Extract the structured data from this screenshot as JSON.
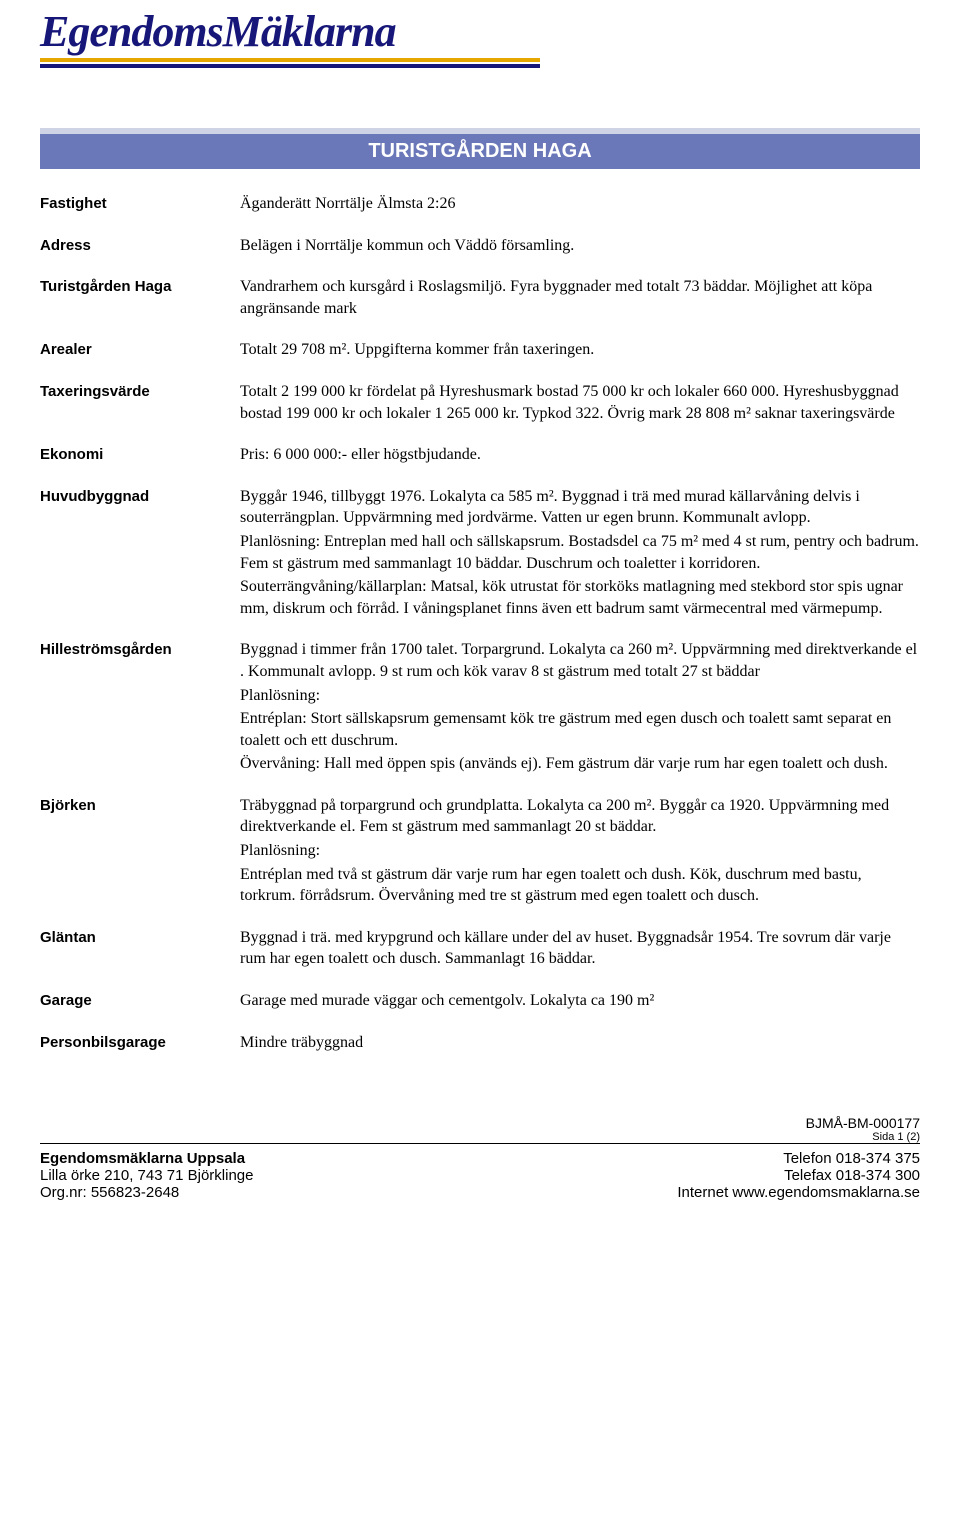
{
  "logo": {
    "text": "EgendomsMäklarna",
    "text_color": "#17177a",
    "underline_colors": [
      "#e6a800",
      "#17177a"
    ]
  },
  "title_bar": {
    "text": "TURISTGÅRDEN HAGA",
    "background_color": "#6a77b8",
    "top_border_color": "#cfd3e6",
    "text_color": "#ffffff"
  },
  "sections": [
    {
      "label": "Fastighet",
      "paragraphs": [
        "Äganderätt Norrtälje Älmsta 2:26"
      ]
    },
    {
      "label": "Adress",
      "paragraphs": [
        "Belägen i Norrtälje kommun och Väddö församling."
      ]
    },
    {
      "label": "Turistgården Haga",
      "paragraphs": [
        "Vandrarhem och kursgård i Roslagsmiljö. Fyra byggnader med totalt 73 bäddar. Möjlighet att köpa angränsande mark"
      ]
    },
    {
      "label": "Arealer",
      "paragraphs": [
        "Totalt 29 708 m². Uppgifterna kommer från taxeringen."
      ]
    },
    {
      "label": "Taxeringsvärde",
      "paragraphs": [
        "Totalt 2 199 000 kr fördelat på Hyreshusmark bostad 75 000 kr och lokaler 660 000. Hyreshusbyggnad bostad 199 000 kr och lokaler 1 265 000 kr. Typkod 322. Övrig mark 28 808 m² saknar taxeringsvärde"
      ]
    },
    {
      "label": "Ekonomi",
      "paragraphs": [
        "Pris: 6 000 000:- eller högstbjudande."
      ]
    },
    {
      "label": "Huvudbyggnad",
      "paragraphs": [
        "Byggår 1946, tillbyggt 1976. Lokalyta ca 585 m². Byggnad i trä med murad källarvåning delvis i souterrängplan. Uppvärmning med jordvärme. Vatten ur egen brunn. Kommunalt avlopp.",
        "Planlösning: Entreplan med hall och sällskapsrum. Bostadsdel ca 75 m² med 4 st rum, pentry och badrum. Fem st gästrum med sammanlagt 10 bäddar. Duschrum och toaletter i korridoren.",
        "Souterrängvåning/källarplan: Matsal, kök utrustat för storköks matlagning med stekbord stor spis ugnar mm, diskrum och förråd. I våningsplanet finns även ett badrum samt värmecentral med värmepump."
      ]
    },
    {
      "label": "Hilleströmsgården",
      "paragraphs": [
        "Byggnad i timmer från 1700 talet. Torpargrund. Lokalyta ca 260 m². Uppvärmning med direktverkande el . Kommunalt avlopp. 9 st rum och kök varav 8 st gästrum med totalt 27 st bäddar",
        "Planlösning:",
        "Entréplan: Stort sällskapsrum gemensamt kök tre gästrum med egen dusch och toalett samt separat en toalett och ett duschrum.",
        "Övervåning: Hall med öppen spis (används ej). Fem gästrum där varje rum har egen toalett och dush."
      ]
    },
    {
      "label": "Björken",
      "paragraphs": [
        "Träbyggnad på torpargrund och grundplatta. Lokalyta ca 200 m². Byggår ca 1920. Uppvärmning med direktverkande el. Fem st gästrum med sammanlagt 20 st bäddar.",
        "Planlösning:",
        "Entréplan med två st gästrum där varje rum har egen toalett och dush. Kök, duschrum med bastu, torkrum. förrådsrum. Övervåning med tre st gästrum med egen toalett och dusch."
      ]
    },
    {
      "label": "Gläntan",
      "paragraphs": [
        "Byggnad i trä. med krypgrund och källare under del av huset. Byggnadsår 1954. Tre sovrum där varje rum har egen toalett och dusch. Sammanlagt 16 bäddar."
      ]
    },
    {
      "label": "Garage",
      "paragraphs": [
        "Garage med murade väggar och cementgolv. Lokalyta ca 190 m²"
      ]
    },
    {
      "label": "Personbilsgarage",
      "paragraphs": [
        "Mindre träbyggnad"
      ]
    }
  ],
  "doc_reference": "BJMÅ-BM-000177",
  "page_number": "Sida 1 (2)",
  "footer": {
    "left": {
      "company": "Egendomsmäklarna Uppsala",
      "address": "Lilla örke 210, 743 71  Björklinge",
      "orgnr": "Org.nr: 556823-2648"
    },
    "right": {
      "phone": "Telefon 018-374 375",
      "fax": "Telefax 018-374 300",
      "internet": "Internet www.egendomsmaklarna.se"
    }
  }
}
